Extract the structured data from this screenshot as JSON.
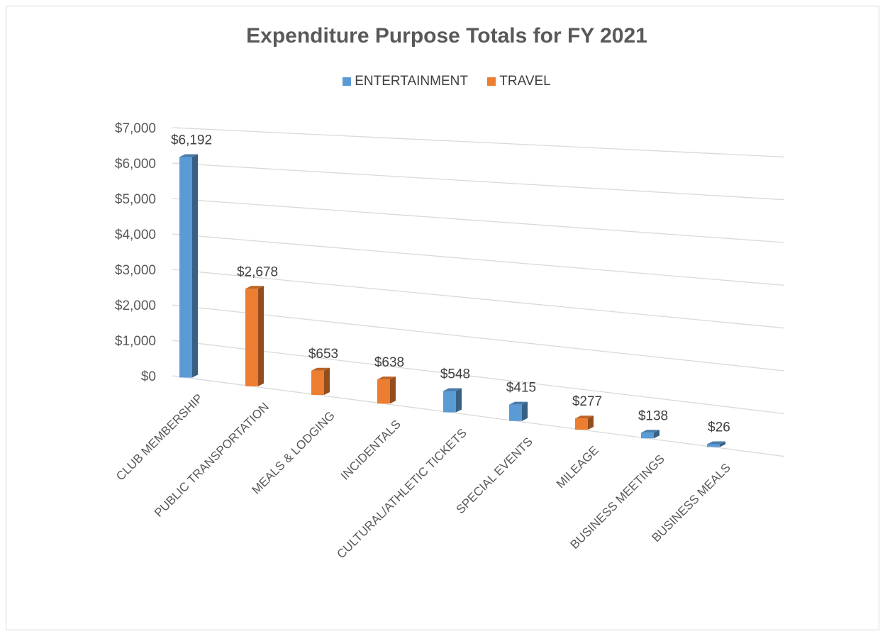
{
  "chart_data": {
    "type": "bar",
    "title": "Expenditure Purpose Totals for FY 2021",
    "legend_position": "top",
    "series": [
      {
        "name": "ENTERTAINMENT",
        "color": "#5b9bd5"
      },
      {
        "name": "TRAVEL",
        "color": "#ed7d31"
      }
    ],
    "categories": [
      "CLUB MEMBERSHIP",
      "PUBLIC TRANSPORTATION",
      "MEALS & LODGING",
      "INCIDENTALS",
      "CULTURAL/ATHLETIC TICKETS",
      "SPECIAL EVENTS",
      "MILEAGE",
      "BUSINESS MEETINGS",
      "BUSINESS MEALS"
    ],
    "values": [
      6192,
      2678,
      653,
      638,
      548,
      415,
      277,
      138,
      26
    ],
    "value_series": [
      "ENTERTAINMENT",
      "TRAVEL",
      "TRAVEL",
      "TRAVEL",
      "ENTERTAINMENT",
      "ENTERTAINMENT",
      "TRAVEL",
      "ENTERTAINMENT",
      "ENTERTAINMENT"
    ],
    "data_labels": [
      "$6,192",
      "$2,678",
      "$653",
      "$638",
      "$548",
      "$415",
      "$277",
      "$138",
      "$26"
    ],
    "y_ticks": [
      "$0",
      "$1,000",
      "$2,000",
      "$3,000",
      "$4,000",
      "$5,000",
      "$6,000",
      "$7,000"
    ],
    "ylim": [
      0,
      7000
    ],
    "grid": true
  }
}
